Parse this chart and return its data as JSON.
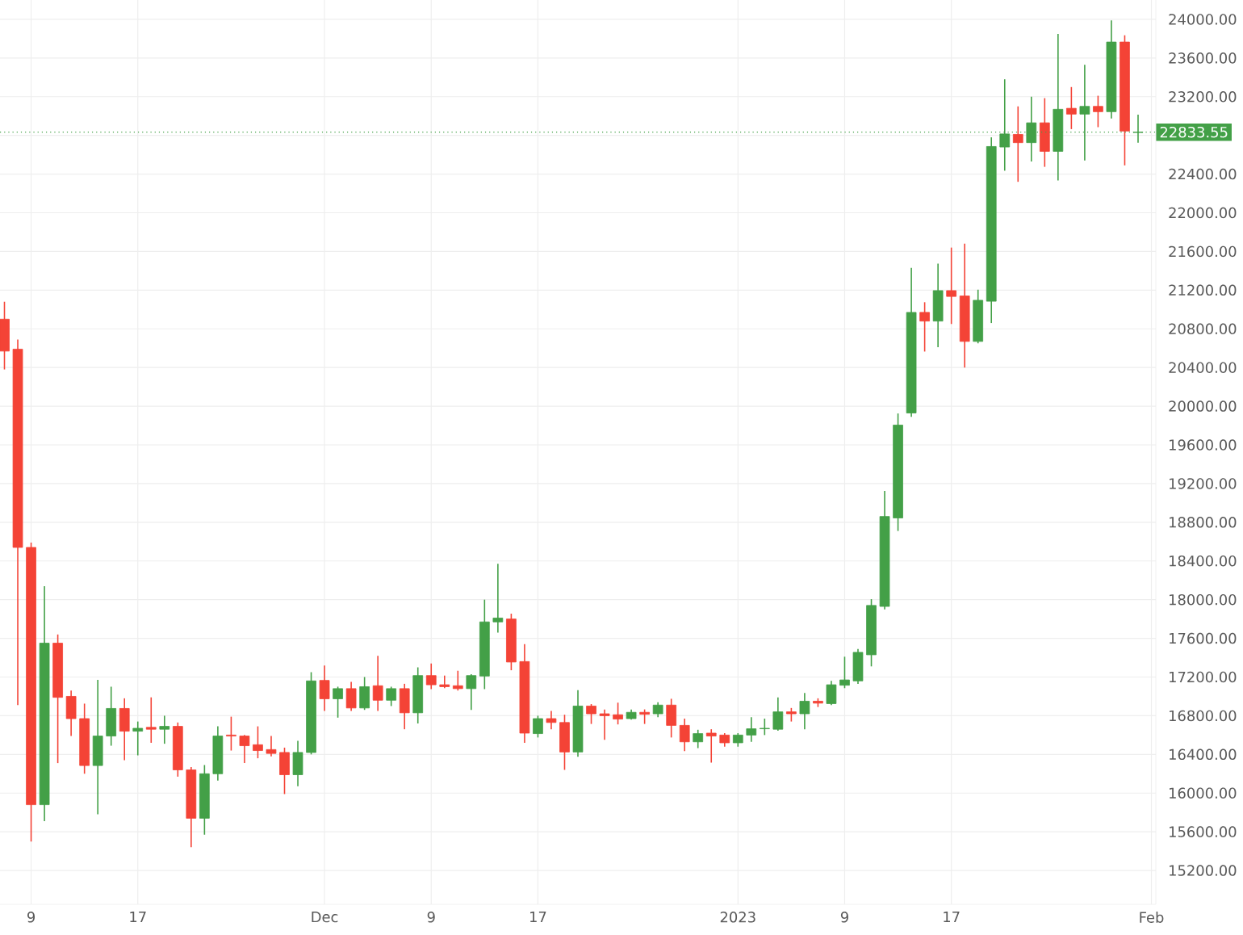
{
  "chart_data": {
    "type": "candlestick",
    "x": [
      "2022-11-07",
      "2022-11-08",
      "2022-11-09",
      "2022-11-10",
      "2022-11-11",
      "2022-11-12",
      "2022-11-13",
      "2022-11-14",
      "2022-11-15",
      "2022-11-16",
      "2022-11-17",
      "2022-11-18",
      "2022-11-19",
      "2022-11-20",
      "2022-11-21",
      "2022-11-22",
      "2022-11-23",
      "2022-11-24",
      "2022-11-25",
      "2022-11-26",
      "2022-11-27",
      "2022-11-28",
      "2022-11-29",
      "2022-11-30",
      "2022-12-01",
      "2022-12-02",
      "2022-12-03",
      "2022-12-04",
      "2022-12-05",
      "2022-12-06",
      "2022-12-07",
      "2022-12-08",
      "2022-12-09",
      "2022-12-10",
      "2022-12-11",
      "2022-12-12",
      "2022-12-13",
      "2022-12-14",
      "2022-12-15",
      "2022-12-16",
      "2022-12-17",
      "2022-12-18",
      "2022-12-19",
      "2022-12-20",
      "2022-12-21",
      "2022-12-22",
      "2022-12-23",
      "2022-12-24",
      "2022-12-25",
      "2022-12-26",
      "2022-12-27",
      "2022-12-28",
      "2022-12-29",
      "2022-12-30",
      "2022-12-31",
      "2023-01-01",
      "2023-01-02",
      "2023-01-03",
      "2023-01-04",
      "2023-01-05",
      "2023-01-06",
      "2023-01-07",
      "2023-01-08",
      "2023-01-09",
      "2023-01-10",
      "2023-01-11",
      "2023-01-12",
      "2023-01-13",
      "2023-01-14",
      "2023-01-15",
      "2023-01-16",
      "2023-01-17",
      "2023-01-18",
      "2023-01-19",
      "2023-01-20",
      "2023-01-21",
      "2023-01-22",
      "2023-01-23",
      "2023-01-24",
      "2023-01-25",
      "2023-01-26",
      "2023-01-27",
      "2023-01-28",
      "2023-01-29",
      "2023-01-30",
      "2023-01-31"
    ],
    "ohlc": [
      [
        20900,
        21080,
        20380,
        20570
      ],
      [
        20590,
        20690,
        16910,
        18540
      ],
      [
        18540,
        18590,
        15500,
        15880
      ],
      [
        15880,
        18140,
        15710,
        17550
      ],
      [
        17550,
        17640,
        16310,
        16990
      ],
      [
        17000,
        17060,
        16590,
        16770
      ],
      [
        16770,
        16925,
        16200,
        16285
      ],
      [
        16285,
        17170,
        15780,
        16590
      ],
      [
        16590,
        17100,
        16490,
        16875
      ],
      [
        16875,
        16980,
        16340,
        16640
      ],
      [
        16640,
        16740,
        16390,
        16670
      ],
      [
        16680,
        16990,
        16520,
        16660
      ],
      [
        16660,
        16800,
        16510,
        16690
      ],
      [
        16690,
        16730,
        16170,
        16240
      ],
      [
        16240,
        16270,
        15440,
        15740
      ],
      [
        15740,
        16290,
        15570,
        16200
      ],
      [
        16200,
        16690,
        16130,
        16590
      ],
      [
        16600,
        16790,
        16440,
        16590
      ],
      [
        16590,
        16600,
        16310,
        16490
      ],
      [
        16500,
        16690,
        16360,
        16440
      ],
      [
        16450,
        16590,
        16380,
        16410
      ],
      [
        16420,
        16470,
        15990,
        16190
      ],
      [
        16190,
        16540,
        16070,
        16420
      ],
      [
        16420,
        17250,
        16400,
        17160
      ],
      [
        17165,
        17320,
        16850,
        16975
      ],
      [
        16975,
        17100,
        16780,
        17080
      ],
      [
        17080,
        17150,
        16850,
        16880
      ],
      [
        16880,
        17200,
        16860,
        17100
      ],
      [
        17110,
        17420,
        16850,
        16960
      ],
      [
        16960,
        17100,
        16900,
        17080
      ],
      [
        17080,
        17130,
        16660,
        16830
      ],
      [
        16830,
        17300,
        16720,
        17215
      ],
      [
        17215,
        17340,
        17075,
        17120
      ],
      [
        17120,
        17215,
        17085,
        17100
      ],
      [
        17110,
        17265,
        17060,
        17080
      ],
      [
        17080,
        17230,
        16860,
        17215
      ],
      [
        17210,
        18000,
        17075,
        17770
      ],
      [
        17770,
        18370,
        17660,
        17810
      ],
      [
        17800,
        17855,
        17270,
        17355
      ],
      [
        17360,
        17540,
        16520,
        16620
      ],
      [
        16615,
        16800,
        16575,
        16770
      ],
      [
        16770,
        16850,
        16660,
        16730
      ],
      [
        16730,
        16810,
        16240,
        16425
      ],
      [
        16425,
        17065,
        16375,
        16900
      ],
      [
        16900,
        16920,
        16715,
        16820
      ],
      [
        16820,
        16865,
        16550,
        16800
      ],
      [
        16810,
        16935,
        16710,
        16765
      ],
      [
        16770,
        16865,
        16760,
        16835
      ],
      [
        16835,
        16865,
        16715,
        16815
      ],
      [
        16820,
        16940,
        16785,
        16910
      ],
      [
        16910,
        16975,
        16575,
        16700
      ],
      [
        16700,
        16770,
        16435,
        16530
      ],
      [
        16530,
        16655,
        16465,
        16615
      ],
      [
        16620,
        16660,
        16315,
        16590
      ],
      [
        16600,
        16620,
        16480,
        16520
      ],
      [
        16520,
        16620,
        16480,
        16600
      ],
      [
        16600,
        16785,
        16530,
        16665
      ],
      [
        16665,
        16770,
        16600,
        16670
      ],
      [
        16660,
        16990,
        16645,
        16840
      ],
      [
        16840,
        16880,
        16740,
        16820
      ],
      [
        16820,
        17035,
        16660,
        16950
      ],
      [
        16950,
        16980,
        16890,
        16930
      ],
      [
        16925,
        17160,
        16910,
        17120
      ],
      [
        17115,
        17410,
        17085,
        17170
      ],
      [
        17160,
        17490,
        17130,
        17455
      ],
      [
        17430,
        18005,
        17310,
        17940
      ],
      [
        17930,
        19125,
        17900,
        18860
      ],
      [
        18845,
        19925,
        18710,
        19805
      ],
      [
        19930,
        21430,
        19890,
        20970
      ],
      [
        20970,
        21075,
        20565,
        20880
      ],
      [
        20880,
        21475,
        20610,
        21195
      ],
      [
        21195,
        21640,
        20850,
        21135
      ],
      [
        21140,
        21680,
        20400,
        20670
      ],
      [
        20670,
        21205,
        20650,
        21095
      ],
      [
        21085,
        22780,
        20860,
        22685
      ],
      [
        22680,
        23380,
        22435,
        22815
      ],
      [
        22810,
        23100,
        22320,
        22725
      ],
      [
        22725,
        23200,
        22530,
        22930
      ],
      [
        22930,
        23185,
        22475,
        22635
      ],
      [
        22635,
        23850,
        22335,
        23070
      ],
      [
        23080,
        23300,
        22865,
        23020
      ],
      [
        23020,
        23530,
        22540,
        23100
      ],
      [
        23100,
        23210,
        22885,
        23045
      ],
      [
        23045,
        23990,
        22975,
        23765
      ],
      [
        23765,
        23835,
        22490,
        22845
      ],
      [
        22830,
        23015,
        22725,
        22834
      ]
    ],
    "colors": [
      "#f44336",
      "#f44336",
      "#f44336",
      "#43a047",
      "#f44336",
      "#f44336",
      "#f44336",
      "#43a047",
      "#43a047",
      "#f44336",
      "#43a047",
      "#f44336",
      "#43a047",
      "#f44336",
      "#f44336",
      "#43a047",
      "#43a047",
      "#f44336",
      "#f44336",
      "#f44336",
      "#f44336",
      "#f44336",
      "#43a047",
      "#43a047",
      "#f44336",
      "#43a047",
      "#f44336",
      "#43a047",
      "#f44336",
      "#43a047",
      "#f44336",
      "#43a047",
      "#f44336",
      "#f44336",
      "#f44336",
      "#43a047",
      "#43a047",
      "#43a047",
      "#f44336",
      "#f44336",
      "#43a047",
      "#f44336",
      "#f44336",
      "#43a047",
      "#f44336",
      "#f44336",
      "#f44336",
      "#43a047",
      "#f44336",
      "#43a047",
      "#f44336",
      "#f44336",
      "#43a047",
      "#f44336",
      "#f44336",
      "#43a047",
      "#43a047",
      "#43a047",
      "#43a047",
      "#f44336",
      "#43a047",
      "#f44336",
      "#43a047",
      "#43a047",
      "#43a047",
      "#43a047",
      "#43a047",
      "#43a047",
      "#43a047",
      "#f44336",
      "#43a047",
      "#f44336",
      "#f44336",
      "#43a047",
      "#43a047",
      "#43a047",
      "#f44336",
      "#43a047",
      "#f44336",
      "#43a047",
      "#f44336",
      "#43a047",
      "#f44336",
      "#43a047",
      "#f44336",
      "#43a047"
    ],
    "xlim": [
      "2022-11-06T16:00",
      "2023-02-01T08:00"
    ],
    "xticks": [
      {
        "value": "2022-11-09",
        "label": "9"
      },
      {
        "value": "2022-11-17",
        "label": "17"
      },
      {
        "value": "2022-12-01",
        "label": "Dec"
      },
      {
        "value": "2022-12-09",
        "label": "9"
      },
      {
        "value": "2022-12-17",
        "label": "17"
      },
      {
        "value": "2023-01-01",
        "label": "2023"
      },
      {
        "value": "2023-01-09",
        "label": "9"
      },
      {
        "value": "2023-01-17",
        "label": "17"
      },
      {
        "value": "2023-02-01",
        "label": "Feb"
      }
    ],
    "ylim": [
      14850,
      24200
    ],
    "yticks": [
      {
        "value": 15200,
        "label": "15200.00"
      },
      {
        "value": 15600,
        "label": "15600.00"
      },
      {
        "value": 16000,
        "label": "16000.00"
      },
      {
        "value": 16400,
        "label": "16400.00"
      },
      {
        "value": 16800,
        "label": "16800.00"
      },
      {
        "value": 17200,
        "label": "17200.00"
      },
      {
        "value": 17600,
        "label": "17600.00"
      },
      {
        "value": 18000,
        "label": "18000.00"
      },
      {
        "value": 18400,
        "label": "18400.00"
      },
      {
        "value": 18800,
        "label": "18800.00"
      },
      {
        "value": 19200,
        "label": "19200.00"
      },
      {
        "value": 19600,
        "label": "19600.00"
      },
      {
        "value": 20000,
        "label": "20000.00"
      },
      {
        "value": 20400,
        "label": "20400.00"
      },
      {
        "value": 20800,
        "label": "20800.00"
      },
      {
        "value": 21200,
        "label": "21200.00"
      },
      {
        "value": 21600,
        "label": "21600.00"
      },
      {
        "value": 22000,
        "label": "22000.00"
      },
      {
        "value": 22400,
        "label": "22400.00"
      },
      {
        "value": 22800,
        "label": null
      },
      {
        "value": 23200,
        "label": "23200.00"
      },
      {
        "value": 23600,
        "label": "23600.00"
      },
      {
        "value": 24000,
        "label": "24000.00"
      }
    ],
    "ref_lines": [
      {
        "axis": "y",
        "value": 22833.55,
        "label": "22833.55",
        "color": "#43a047",
        "line_style": "dotted"
      }
    ],
    "grid": true
  }
}
